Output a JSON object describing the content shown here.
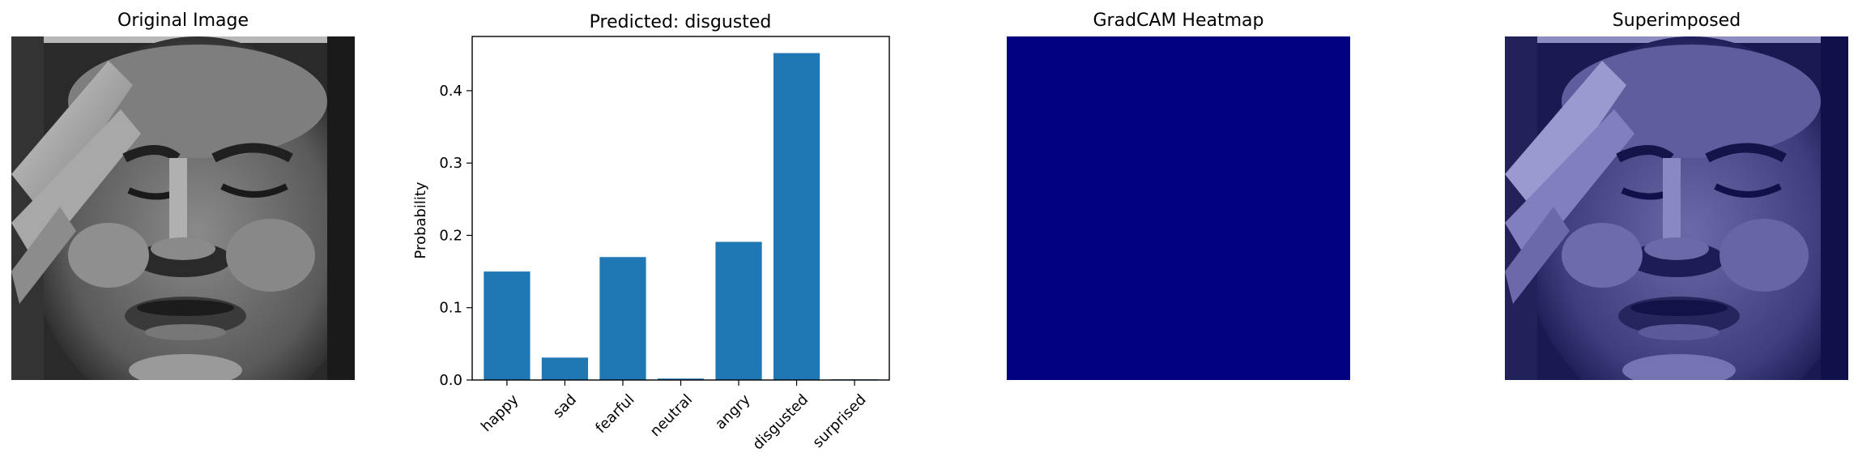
{
  "panels": {
    "original": {
      "title": "Original Image"
    },
    "heatmap": {
      "title": "GradCAM Heatmap",
      "color": "#000080"
    },
    "superimposed": {
      "title": "Superimposed"
    }
  },
  "chart_data": {
    "type": "bar",
    "title": "Predicted: disgusted",
    "xlabel": "",
    "ylabel": "Probability",
    "categories": [
      "happy",
      "sad",
      "fearful",
      "neutral",
      "angry",
      "disgusted",
      "surprised"
    ],
    "values": [
      0.15,
      0.031,
      0.17,
      0.002,
      0.191,
      0.452,
      0.001
    ],
    "ylim": [
      0,
      0.475
    ],
    "yticks": [
      "0.0",
      "0.1",
      "0.2",
      "0.3",
      "0.4"
    ],
    "ytick_values": [
      0,
      0.1,
      0.2,
      0.3,
      0.4
    ],
    "bar_color": "#1f77b4",
    "grid": false
  }
}
